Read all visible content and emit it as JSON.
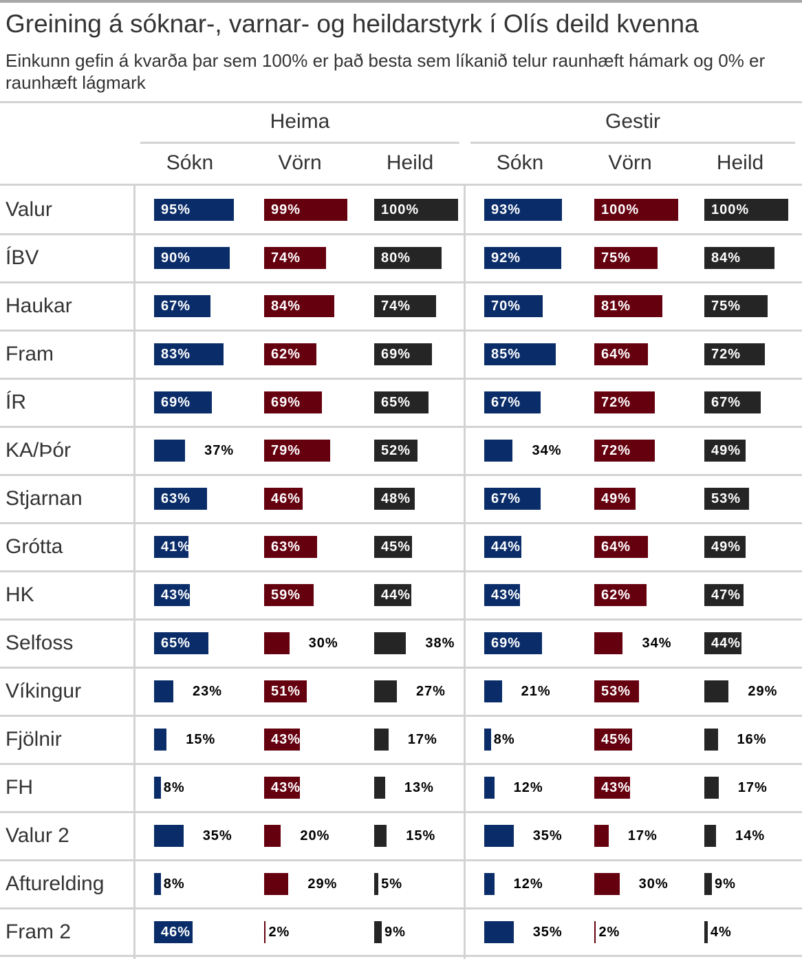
{
  "title": "Greining á sóknar-, varnar- og heildarstyrk í Olís deild kvenna",
  "subtitle": "Einkunn gefin á kvarða þar sem 100% er það besta sem líkanið telur raunhæft hámark og 0% er raunhæft lágmark",
  "colors": {
    "sokn": "#0a2d69",
    "vorn": "#65000f",
    "heild": "#252525"
  },
  "chart_data": {
    "type": "table",
    "spanners": [
      "Heima",
      "Gestir"
    ],
    "columns": [
      "Sókn",
      "Vörn",
      "Heild"
    ],
    "rows": [
      {
        "team": "Valur",
        "heima": [
          95,
          99,
          100
        ],
        "gestir": [
          93,
          100,
          100
        ]
      },
      {
        "team": "ÍBV",
        "heima": [
          90,
          74,
          80
        ],
        "gestir": [
          92,
          75,
          84
        ]
      },
      {
        "team": "Haukar",
        "heima": [
          67,
          84,
          74
        ],
        "gestir": [
          70,
          81,
          75
        ]
      },
      {
        "team": "Fram",
        "heima": [
          83,
          62,
          69
        ],
        "gestir": [
          85,
          64,
          72
        ]
      },
      {
        "team": "ÍR",
        "heima": [
          69,
          69,
          65
        ],
        "gestir": [
          67,
          72,
          67
        ]
      },
      {
        "team": "KA/Þór",
        "heima": [
          37,
          79,
          52
        ],
        "gestir": [
          34,
          72,
          49
        ]
      },
      {
        "team": "Stjarnan",
        "heima": [
          63,
          46,
          48
        ],
        "gestir": [
          67,
          49,
          53
        ]
      },
      {
        "team": "Grótta",
        "heima": [
          41,
          63,
          45
        ],
        "gestir": [
          44,
          64,
          49
        ]
      },
      {
        "team": "HK",
        "heima": [
          43,
          59,
          44
        ],
        "gestir": [
          43,
          62,
          47
        ]
      },
      {
        "team": "Selfoss",
        "heima": [
          65,
          30,
          38
        ],
        "gestir": [
          69,
          34,
          44
        ]
      },
      {
        "team": "Víkingur",
        "heima": [
          23,
          51,
          27
        ],
        "gestir": [
          21,
          53,
          29
        ]
      },
      {
        "team": "Fjölnir",
        "heima": [
          15,
          43,
          17
        ],
        "gestir": [
          8,
          45,
          16
        ]
      },
      {
        "team": "FH",
        "heima": [
          8,
          43,
          13
        ],
        "gestir": [
          12,
          43,
          17
        ]
      },
      {
        "team": "Valur 2",
        "heima": [
          35,
          20,
          15
        ],
        "gestir": [
          35,
          17,
          14
        ]
      },
      {
        "team": "Afturelding",
        "heima": [
          8,
          29,
          5
        ],
        "gestir": [
          12,
          30,
          9
        ]
      },
      {
        "team": "Fram 2",
        "heima": [
          46,
          2,
          9
        ],
        "gestir": [
          35,
          2,
          4
        ]
      }
    ]
  }
}
